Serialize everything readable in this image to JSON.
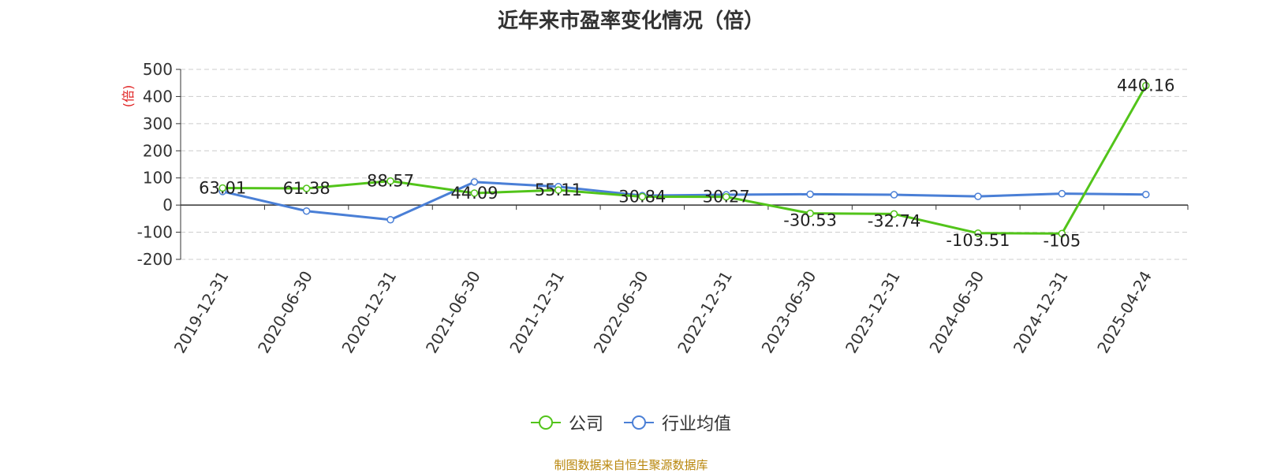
{
  "source_note": "制图数据来自恒生聚源数据库",
  "chart_data": {
    "type": "line",
    "title": "近年来市盈率变化情况（倍）",
    "ylabel": "(倍)",
    "xlabel": "",
    "ylim": [
      -200,
      500
    ],
    "yticks": [
      500,
      400,
      300,
      200,
      100,
      0,
      -100,
      -200
    ],
    "grid": true,
    "legend_position": "bottom",
    "categories": [
      "2019-12-31",
      "2020-06-30",
      "2020-12-31",
      "2021-06-30",
      "2021-12-31",
      "2022-06-30",
      "2022-12-31",
      "2023-06-30",
      "2023-12-31",
      "2024-06-30",
      "2024-12-31",
      "2025-04-24"
    ],
    "series": [
      {
        "name": "公司",
        "color": "#52c41a",
        "values": [
          63.01,
          61.38,
          88.57,
          44.09,
          55.11,
          30.84,
          30.27,
          -30.53,
          -32.74,
          -103.51,
          -105,
          440.16
        ],
        "labels": [
          "63.01",
          "61.38",
          "88.57",
          "44.09",
          "55.11",
          "30.84",
          "30.27",
          "-30.53",
          "-32.74",
          "-103.51",
          "-105",
          "440.16"
        ]
      },
      {
        "name": "行业均值",
        "color": "#4a7fd6",
        "values": [
          50,
          -22,
          -54,
          85,
          68,
          35,
          38,
          40,
          38,
          32,
          42,
          39
        ]
      }
    ]
  }
}
